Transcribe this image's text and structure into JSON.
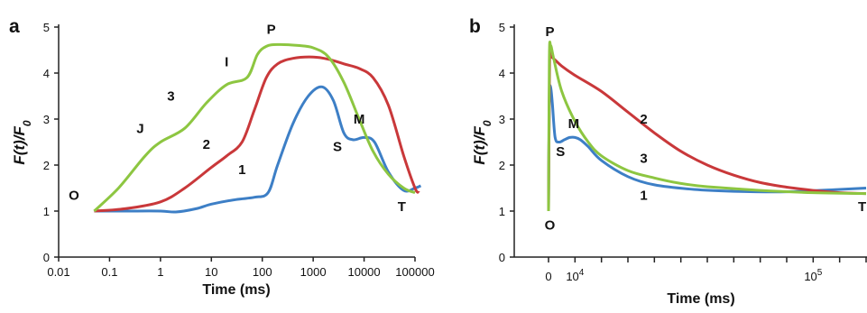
{
  "chart_data": [
    {
      "type": "line",
      "panel_label": "a",
      "xlabel": "Time (ms)",
      "ylabel": "F(t)/F0",
      "xscale": "log",
      "xlim": [
        0.01,
        100000
      ],
      "ylim": [
        0,
        5
      ],
      "x_ticks": [
        "0.01",
        "0.1",
        "1",
        "10",
        "100",
        "1000",
        "10000",
        "100000"
      ],
      "y_ticks": [
        "0",
        "1",
        "2",
        "3",
        "4",
        "5"
      ],
      "grid": false,
      "series": [
        {
          "name": "1",
          "color": "#3d7fc6",
          "x": [
            0.05,
            0.2,
            1,
            2,
            5,
            10,
            30,
            70,
            130,
            200,
            400,
            800,
            1500,
            2500,
            4000,
            6000,
            10000,
            16000,
            30000,
            60000,
            100000,
            130000
          ],
          "y": [
            1.0,
            1.0,
            1.0,
            0.98,
            1.05,
            1.15,
            1.25,
            1.3,
            1.4,
            2.0,
            2.9,
            3.5,
            3.7,
            3.4,
            2.7,
            2.55,
            2.6,
            2.5,
            1.85,
            1.45,
            1.5,
            1.55
          ]
        },
        {
          "name": "2",
          "color": "#c9383a",
          "x": [
            0.05,
            0.2,
            1,
            3,
            10,
            20,
            40,
            70,
            120,
            200,
            400,
            1000,
            2000,
            4000,
            8000,
            15000,
            30000,
            60000,
            100000,
            120000
          ],
          "y": [
            1.0,
            1.05,
            1.2,
            1.5,
            1.95,
            2.2,
            2.5,
            3.2,
            3.9,
            4.2,
            4.32,
            4.35,
            4.3,
            4.2,
            4.1,
            3.9,
            3.3,
            2.2,
            1.5,
            1.4
          ]
        },
        {
          "name": "3",
          "color": "#8dc641",
          "x": [
            0.05,
            0.15,
            0.5,
            1,
            3,
            8,
            20,
            50,
            80,
            120,
            200,
            500,
            1000,
            2000,
            4000,
            8000,
            15000,
            30000,
            60000,
            100000
          ],
          "y": [
            1.0,
            1.5,
            2.2,
            2.5,
            2.8,
            3.35,
            3.75,
            3.9,
            4.4,
            4.58,
            4.62,
            4.6,
            4.55,
            4.35,
            3.8,
            3.0,
            2.3,
            1.8,
            1.5,
            1.4
          ]
        }
      ],
      "annotations": [
        {
          "text": "O",
          "x": 0.02,
          "y": 1.25
        },
        {
          "text": "J",
          "x": 0.4,
          "y": 2.7
        },
        {
          "text": "3",
          "x": 1.6,
          "y": 3.4
        },
        {
          "text": "I",
          "x": 20,
          "y": 4.15
        },
        {
          "text": "P",
          "x": 150,
          "y": 4.85
        },
        {
          "text": "2",
          "x": 8,
          "y": 2.35
        },
        {
          "text": "1",
          "x": 40,
          "y": 1.8
        },
        {
          "text": "M",
          "x": 8000,
          "y": 2.9
        },
        {
          "text": "S",
          "x": 3000,
          "y": 2.3
        },
        {
          "text": "T",
          "x": 55000,
          "y": 1.0
        }
      ]
    },
    {
      "type": "line",
      "panel_label": "b",
      "xlabel": "Time (ms)",
      "ylabel": "F(t)/F0",
      "xlim": [
        0,
        120000
      ],
      "ylim": [
        0,
        5
      ],
      "x_ticks": [
        {
          "value": 0,
          "label": "0"
        },
        {
          "value": 10000,
          "label": "10",
          "sup": "4"
        },
        {
          "value": 100000,
          "label": "10",
          "sup": "5"
        }
      ],
      "y_ticks": [
        "0",
        "1",
        "2",
        "3",
        "4",
        "5"
      ],
      "grid": false,
      "series": [
        {
          "name": "1",
          "color": "#3d7fc6",
          "x": [
            0,
            300,
            800,
            1500,
            2500,
            4000,
            6000,
            8000,
            10000,
            12000,
            15000,
            20000,
            30000,
            40000,
            55000,
            70000,
            90000,
            110000,
            120000
          ],
          "y": [
            1.0,
            3.4,
            3.7,
            3.3,
            2.6,
            2.5,
            2.55,
            2.6,
            2.6,
            2.55,
            2.4,
            2.1,
            1.75,
            1.57,
            1.47,
            1.43,
            1.42,
            1.47,
            1.5
          ]
        },
        {
          "name": "2",
          "color": "#c9383a",
          "x": [
            0,
            400,
            1000,
            5000,
            10000,
            20000,
            30000,
            40000,
            50000,
            60000,
            70000,
            80000,
            90000,
            100000,
            110000,
            120000
          ],
          "y": [
            1.0,
            4.2,
            4.35,
            4.15,
            3.95,
            3.6,
            3.15,
            2.7,
            2.3,
            2.0,
            1.78,
            1.62,
            1.52,
            1.45,
            1.4,
            1.38
          ]
        },
        {
          "name": "3",
          "color": "#8dc641",
          "x": [
            0,
            300,
            800,
            2000,
            5000,
            10000,
            15000,
            20000,
            30000,
            40000,
            50000,
            60000,
            80000,
            100000,
            120000
          ],
          "y": [
            1.0,
            4.3,
            4.6,
            4.3,
            3.6,
            2.95,
            2.5,
            2.2,
            1.88,
            1.72,
            1.6,
            1.53,
            1.45,
            1.4,
            1.38
          ]
        }
      ],
      "annotations": [
        {
          "text": "P",
          "x": 500,
          "y": 4.8
        },
        {
          "text": "O",
          "x": 500,
          "y": 0.6
        },
        {
          "text": "S",
          "x": 4500,
          "y": 2.2
        },
        {
          "text": "M",
          "x": 9500,
          "y": 2.8
        },
        {
          "text": "2",
          "x": 36000,
          "y": 2.9
        },
        {
          "text": "3",
          "x": 36000,
          "y": 2.05
        },
        {
          "text": "1",
          "x": 36000,
          "y": 1.25
        },
        {
          "text": "T",
          "x": 118500,
          "y": 1.0
        }
      ]
    }
  ]
}
